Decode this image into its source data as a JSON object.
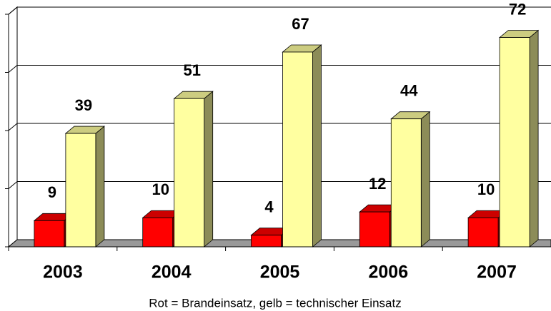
{
  "chart_data": {
    "type": "bar3d",
    "caption": "Rot = Brandeinsatz, gelb = technischer Einsatz",
    "categories": [
      "2003",
      "2004",
      "2005",
      "2006",
      "2007"
    ],
    "series": [
      {
        "color": "#ff0000",
        "values": [
          9,
          10,
          4,
          12,
          10
        ]
      },
      {
        "color": "#ffffa0",
        "values": [
          39,
          51,
          67,
          44,
          72
        ]
      }
    ],
    "ylim": [
      0,
      80
    ],
    "yticks": [
      0,
      20,
      40,
      60,
      80
    ],
    "grid": true
  }
}
